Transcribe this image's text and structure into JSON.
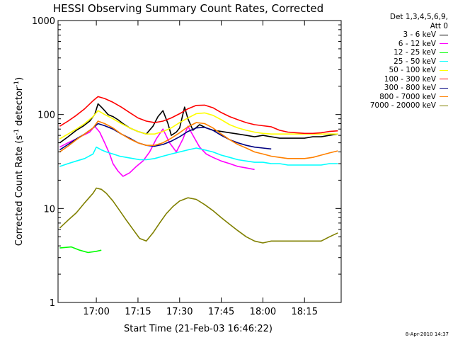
{
  "chart_data": {
    "type": "line",
    "title": "HESSI Observing Summary Count Rates, Corrected",
    "xlabel": "Start Time (21-Feb-03 16:46:22)",
    "ylabel_base": "Corrected Count Rate (s",
    "ylabel_sup1": "-1",
    "ylabel_mid": " detector",
    "ylabel_sup2": "-1",
    "ylabel_end": ")",
    "y_scale": "log",
    "ylim": [
      1,
      1000
    ],
    "xlim_minutes": [
      16.77,
      18.47
    ],
    "x_ticks": [
      "17:00",
      "17:15",
      "17:30",
      "17:45",
      "18:00",
      "18:15"
    ],
    "x_tick_hours": [
      17.0,
      17.25,
      17.5,
      17.75,
      18.0,
      18.25
    ],
    "y_ticks": [
      "1",
      "10",
      "100",
      "1000"
    ],
    "y_tick_values": [
      1,
      10,
      100,
      1000
    ],
    "legend_header": [
      "Det 1,3,4,5,6,9,",
      "Att 0"
    ],
    "series": [
      {
        "name": "3 - 6 keV",
        "color": "#000000",
        "points": [
          [
            16.78,
            50
          ],
          [
            16.83,
            58
          ],
          [
            16.88,
            68
          ],
          [
            16.92,
            75
          ],
          [
            16.96,
            85
          ],
          [
            16.99,
            100
          ],
          [
            17.01,
            130
          ],
          [
            17.03,
            120
          ],
          [
            17.05,
            110
          ],
          [
            17.07,
            100
          ],
          [
            17.1,
            95
          ],
          [
            17.13,
            88
          ],
          [
            17.16,
            80
          ],
          [
            17.2,
            72
          ],
          [
            17.25,
            66
          ],
          [
            17.3,
            62
          ],
          [
            17.34,
            75
          ],
          [
            17.37,
            95
          ],
          [
            17.4,
            110
          ],
          [
            17.43,
            80
          ],
          [
            17.45,
            60
          ],
          [
            17.48,
            65
          ],
          [
            17.5,
            72
          ],
          [
            17.53,
            120
          ],
          [
            17.55,
            90
          ],
          [
            17.58,
            68
          ],
          [
            17.62,
            78
          ],
          [
            17.66,
            72
          ],
          [
            17.7,
            68
          ],
          [
            17.75,
            66
          ],
          [
            17.8,
            64
          ],
          [
            17.85,
            62
          ],
          [
            17.9,
            60
          ],
          [
            17.95,
            58
          ],
          [
            18.0,
            60
          ],
          [
            18.05,
            58
          ],
          [
            18.1,
            56
          ],
          [
            18.15,
            56
          ],
          [
            18.2,
            56
          ],
          [
            18.25,
            56
          ],
          [
            18.3,
            58
          ],
          [
            18.35,
            58
          ],
          [
            18.4,
            60
          ],
          [
            18.45,
            62
          ]
        ]
      },
      {
        "name": "6 - 12 keV",
        "color": "#ff00ff",
        "points": [
          [
            16.78,
            45
          ],
          [
            16.83,
            50
          ],
          [
            16.88,
            55
          ],
          [
            16.92,
            60
          ],
          [
            16.96,
            65
          ],
          [
            16.99,
            75
          ],
          [
            17.02,
            65
          ],
          [
            17.05,
            50
          ],
          [
            17.08,
            38
          ],
          [
            17.1,
            30
          ],
          [
            17.13,
            25
          ],
          [
            17.16,
            22
          ],
          [
            17.2,
            24
          ],
          [
            17.24,
            28
          ],
          [
            17.28,
            32
          ],
          [
            17.32,
            40
          ],
          [
            17.36,
            55
          ],
          [
            17.4,
            70
          ],
          [
            17.44,
            50
          ],
          [
            17.48,
            40
          ],
          [
            17.52,
            55
          ],
          [
            17.55,
            75
          ],
          [
            17.58,
            60
          ],
          [
            17.62,
            45
          ],
          [
            17.66,
            38
          ],
          [
            17.7,
            35
          ],
          [
            17.75,
            32
          ],
          [
            17.8,
            30
          ],
          [
            17.85,
            28
          ],
          [
            17.9,
            27
          ],
          [
            17.95,
            26
          ]
        ]
      },
      {
        "name": "12 - 25 keV",
        "color": "#00ff00",
        "points": [
          [
            16.78,
            3.8
          ],
          [
            16.85,
            3.9
          ],
          [
            16.9,
            3.6
          ],
          [
            16.95,
            3.4
          ],
          [
            17.0,
            3.5
          ],
          [
            17.03,
            3.6
          ]
        ]
      },
      {
        "name": "25 - 50 keV",
        "color": "#00ffff",
        "points": [
          [
            16.78,
            28
          ],
          [
            16.83,
            30
          ],
          [
            16.88,
            32
          ],
          [
            16.93,
            34
          ],
          [
            16.98,
            38
          ],
          [
            17.0,
            45
          ],
          [
            17.03,
            42
          ],
          [
            17.06,
            40
          ],
          [
            17.1,
            38
          ],
          [
            17.14,
            36
          ],
          [
            17.18,
            35
          ],
          [
            17.22,
            34
          ],
          [
            17.26,
            33
          ],
          [
            17.3,
            33
          ],
          [
            17.35,
            34
          ],
          [
            17.4,
            36
          ],
          [
            17.45,
            38
          ],
          [
            17.5,
            40
          ],
          [
            17.55,
            42
          ],
          [
            17.6,
            44
          ],
          [
            17.65,
            42
          ],
          [
            17.7,
            40
          ],
          [
            17.75,
            37
          ],
          [
            17.8,
            35
          ],
          [
            17.85,
            33
          ],
          [
            17.9,
            32
          ],
          [
            17.95,
            31
          ],
          [
            18.0,
            31
          ],
          [
            18.05,
            30
          ],
          [
            18.1,
            30
          ],
          [
            18.15,
            29
          ],
          [
            18.2,
            29
          ],
          [
            18.25,
            29
          ],
          [
            18.3,
            29
          ],
          [
            18.35,
            29
          ],
          [
            18.4,
            30
          ],
          [
            18.45,
            30
          ]
        ]
      },
      {
        "name": "50 - 100 keV",
        "color": "#ffff00",
        "points": [
          [
            16.78,
            55
          ],
          [
            16.83,
            62
          ],
          [
            16.88,
            70
          ],
          [
            16.93,
            80
          ],
          [
            16.98,
            95
          ],
          [
            17.01,
            110
          ],
          [
            17.05,
            100
          ],
          [
            17.1,
            90
          ],
          [
            17.15,
            80
          ],
          [
            17.2,
            72
          ],
          [
            17.25,
            66
          ],
          [
            17.3,
            62
          ],
          [
            17.35,
            62
          ],
          [
            17.4,
            66
          ],
          [
            17.45,
            72
          ],
          [
            17.5,
            82
          ],
          [
            17.55,
            92
          ],
          [
            17.6,
            102
          ],
          [
            17.65,
            104
          ],
          [
            17.7,
            98
          ],
          [
            17.75,
            88
          ],
          [
            17.8,
            78
          ],
          [
            17.85,
            72
          ],
          [
            17.9,
            68
          ],
          [
            17.95,
            65
          ],
          [
            18.0,
            63
          ],
          [
            18.05,
            62
          ],
          [
            18.1,
            62
          ],
          [
            18.15,
            62
          ],
          [
            18.2,
            62
          ],
          [
            18.25,
            62
          ],
          [
            18.3,
            62
          ],
          [
            18.35,
            62
          ],
          [
            18.4,
            62
          ],
          [
            18.45,
            62
          ]
        ]
      },
      {
        "name": "100 - 300 keV",
        "color": "#ff0000",
        "points": [
          [
            16.78,
            75
          ],
          [
            16.83,
            85
          ],
          [
            16.88,
            98
          ],
          [
            16.93,
            115
          ],
          [
            16.98,
            140
          ],
          [
            17.01,
            155
          ],
          [
            17.05,
            148
          ],
          [
            17.1,
            135
          ],
          [
            17.15,
            120
          ],
          [
            17.2,
            105
          ],
          [
            17.25,
            92
          ],
          [
            17.3,
            85
          ],
          [
            17.35,
            82
          ],
          [
            17.4,
            85
          ],
          [
            17.45,
            92
          ],
          [
            17.5,
            102
          ],
          [
            17.55,
            115
          ],
          [
            17.6,
            125
          ],
          [
            17.65,
            126
          ],
          [
            17.7,
            118
          ],
          [
            17.75,
            105
          ],
          [
            17.8,
            95
          ],
          [
            17.85,
            88
          ],
          [
            17.9,
            82
          ],
          [
            17.95,
            78
          ],
          [
            18.0,
            76
          ],
          [
            18.05,
            74
          ],
          [
            18.1,
            68
          ],
          [
            18.15,
            65
          ],
          [
            18.2,
            64
          ],
          [
            18.25,
            63
          ],
          [
            18.3,
            63
          ],
          [
            18.35,
            64
          ],
          [
            18.4,
            66
          ],
          [
            18.45,
            67
          ]
        ]
      },
      {
        "name": "300 - 800 keV",
        "color": "#000080",
        "points": [
          [
            16.78,
            42
          ],
          [
            16.83,
            48
          ],
          [
            16.88,
            55
          ],
          [
            16.93,
            62
          ],
          [
            16.98,
            72
          ],
          [
            17.01,
            80
          ],
          [
            17.05,
            76
          ],
          [
            17.1,
            70
          ],
          [
            17.15,
            62
          ],
          [
            17.2,
            56
          ],
          [
            17.25,
            50
          ],
          [
            17.3,
            47
          ],
          [
            17.35,
            46
          ],
          [
            17.4,
            48
          ],
          [
            17.45,
            52
          ],
          [
            17.5,
            58
          ],
          [
            17.55,
            66
          ],
          [
            17.6,
            72
          ],
          [
            17.65,
            73
          ],
          [
            17.7,
            68
          ],
          [
            17.75,
            60
          ],
          [
            17.8,
            54
          ],
          [
            17.85,
            50
          ],
          [
            17.9,
            47
          ],
          [
            17.95,
            45
          ],
          [
            18.0,
            44
          ],
          [
            18.05,
            43
          ]
        ]
      },
      {
        "name": "800 - 7000 keV",
        "color": "#ff8000",
        "points": [
          [
            16.78,
            40
          ],
          [
            16.83,
            46
          ],
          [
            16.88,
            54
          ],
          [
            16.93,
            62
          ],
          [
            16.98,
            72
          ],
          [
            17.01,
            85
          ],
          [
            17.05,
            80
          ],
          [
            17.1,
            72
          ],
          [
            17.15,
            62
          ],
          [
            17.2,
            55
          ],
          [
            17.25,
            50
          ],
          [
            17.3,
            47
          ],
          [
            17.35,
            47
          ],
          [
            17.4,
            50
          ],
          [
            17.45,
            56
          ],
          [
            17.5,
            64
          ],
          [
            17.55,
            74
          ],
          [
            17.6,
            82
          ],
          [
            17.65,
            80
          ],
          [
            17.7,
            72
          ],
          [
            17.75,
            62
          ],
          [
            17.8,
            54
          ],
          [
            17.85,
            48
          ],
          [
            17.9,
            44
          ],
          [
            17.95,
            40
          ],
          [
            18.0,
            38
          ],
          [
            18.05,
            36
          ],
          [
            18.1,
            35
          ],
          [
            18.15,
            34
          ],
          [
            18.2,
            34
          ],
          [
            18.25,
            34
          ],
          [
            18.3,
            35
          ],
          [
            18.35,
            37
          ],
          [
            18.4,
            39
          ],
          [
            18.45,
            41
          ]
        ]
      },
      {
        "name": "7000 - 20000 keV",
        "color": "#808000",
        "points": [
          [
            16.78,
            6.2
          ],
          [
            16.83,
            7.5
          ],
          [
            16.88,
            9.0
          ],
          [
            16.93,
            11.5
          ],
          [
            16.98,
            14.5
          ],
          [
            17.0,
            16.5
          ],
          [
            17.03,
            16.0
          ],
          [
            17.06,
            14.5
          ],
          [
            17.1,
            12.0
          ],
          [
            17.14,
            9.5
          ],
          [
            17.18,
            7.5
          ],
          [
            17.22,
            6.0
          ],
          [
            17.26,
            4.8
          ],
          [
            17.3,
            4.5
          ],
          [
            17.34,
            5.5
          ],
          [
            17.38,
            7.0
          ],
          [
            17.42,
            8.8
          ],
          [
            17.46,
            10.5
          ],
          [
            17.5,
            12.0
          ],
          [
            17.55,
            13.0
          ],
          [
            17.6,
            12.5
          ],
          [
            17.65,
            11.0
          ],
          [
            17.7,
            9.5
          ],
          [
            17.75,
            8.0
          ],
          [
            17.8,
            6.8
          ],
          [
            17.85,
            5.8
          ],
          [
            17.9,
            5.0
          ],
          [
            17.95,
            4.5
          ],
          [
            18.0,
            4.3
          ],
          [
            18.05,
            4.5
          ],
          [
            18.1,
            4.5
          ],
          [
            18.15,
            4.5
          ],
          [
            18.2,
            4.5
          ],
          [
            18.25,
            4.5
          ],
          [
            18.3,
            4.5
          ],
          [
            18.35,
            4.5
          ],
          [
            18.4,
            5.0
          ],
          [
            18.45,
            5.5
          ]
        ]
      }
    ]
  },
  "footer_stamp": "8-Apr-2010 14:37"
}
